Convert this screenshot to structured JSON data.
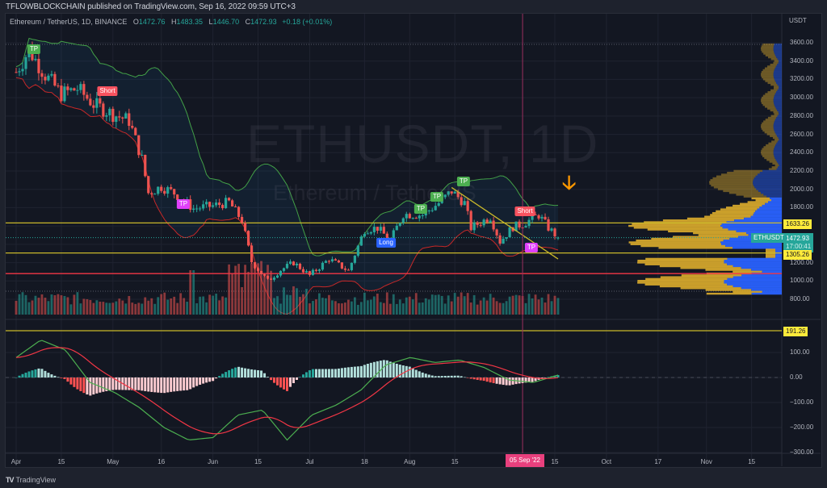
{
  "header": {
    "publisher_line": "TFLOWBLOCKCHAIN published on TradingView.com, Sep 16, 2022 09:59 UTC+3"
  },
  "legend": {
    "symbol_desc": "Ethereum / TetherUS, 1D, BINANCE",
    "o_label": "O",
    "o": "1472.76",
    "h_label": "H",
    "h": "1483.35",
    "l_label": "L",
    "l": "1446.70",
    "c_label": "C",
    "c": "1472.93",
    "change": "+0.18 (+0.01%)"
  },
  "watermark": {
    "symbol": "ETHUSDT, 1D",
    "name": "Ethereum / TetherUS"
  },
  "price_axis": {
    "unit": "USDT",
    "ticks": [
      "3600.00",
      "3400.00",
      "3200.00",
      "3000.00",
      "2800.00",
      "2600.00",
      "2400.00",
      "2200.00",
      "2000.00",
      "1800.00",
      "1200.00",
      "1000.00",
      "800.00"
    ]
  },
  "macd_axis": {
    "ticks": [
      "100.00",
      "0.00",
      "−100.00",
      "−200.00",
      "−300.00"
    ]
  },
  "time_axis": {
    "ticks": [
      "Apr",
      "15",
      "May",
      "16",
      "Jun",
      "15",
      "Jul",
      "18",
      "Aug",
      "15",
      "15",
      "Oct",
      "17",
      "Nov",
      "15"
    ],
    "crosshair_date": "05 Sep '22"
  },
  "price_tags": {
    "resistance": "1633.26",
    "support": "1305.26",
    "last_price": "1472.93",
    "countdown": "17:00:41",
    "symbol": "ETHUSDT",
    "macd_level": "191.26"
  },
  "signals": [
    {
      "label": "TP",
      "color": "#4caf50"
    },
    {
      "label": "Short",
      "color": "#f7525f"
    },
    {
      "label": "TP",
      "color": "#e040fb"
    },
    {
      "label": "Long",
      "color": "#2962ff"
    },
    {
      "label": "TP",
      "color": "#4caf50"
    },
    {
      "label": "TP",
      "color": "#4caf50"
    },
    {
      "label": "TP",
      "color": "#4caf50"
    },
    {
      "label": "Short",
      "color": "#f7525f"
    },
    {
      "label": "TP",
      "color": "#e040fb"
    }
  ],
  "footer": {
    "logo": "TV",
    "brand": "TradingView"
  },
  "colors": {
    "bull": "#26a69a",
    "bear": "#ef5350",
    "upper_band": "#43a047",
    "lower_band": "#c62828",
    "level_line": "#c9b82a",
    "red_level": "#f23645",
    "crosshair": "#9c2f5f",
    "vp_up": "#2962ff",
    "vp_down": "#d4a72c",
    "macd_line": "#4caf50",
    "signal_line": "#f23645"
  },
  "chart_data": {
    "type": "candlestick",
    "title": "Ethereum / TetherUS, 1D, BINANCE",
    "symbol": "ETHUSDT",
    "timeframe": "1D",
    "x_range": [
      "2022-04-01",
      "2022-09-16"
    ],
    "ylim": [
      750,
      3650
    ],
    "approx_closes": [
      {
        "date": "2022-04-01",
        "close": 3280
      },
      {
        "date": "2022-04-05",
        "close": 3520
      },
      {
        "date": "2022-04-10",
        "close": 3250
      },
      {
        "date": "2022-04-15",
        "close": 3040
      },
      {
        "date": "2022-04-20",
        "close": 3100
      },
      {
        "date": "2022-04-25",
        "close": 2930
      },
      {
        "date": "2022-05-01",
        "close": 2820
      },
      {
        "date": "2022-05-06",
        "close": 2750
      },
      {
        "date": "2022-05-10",
        "close": 2330
      },
      {
        "date": "2022-05-12",
        "close": 1960
      },
      {
        "date": "2022-05-16",
        "close": 2030
      },
      {
        "date": "2022-05-20",
        "close": 1960
      },
      {
        "date": "2022-05-26",
        "close": 1790
      },
      {
        "date": "2022-06-01",
        "close": 1820
      },
      {
        "date": "2022-06-06",
        "close": 1860
      },
      {
        "date": "2022-06-10",
        "close": 1660
      },
      {
        "date": "2022-06-13",
        "close": 1210
      },
      {
        "date": "2022-06-18",
        "close": 1000
      },
      {
        "date": "2022-06-22",
        "close": 1120
      },
      {
        "date": "2022-06-26",
        "close": 1200
      },
      {
        "date": "2022-07-01",
        "close": 1060
      },
      {
        "date": "2022-07-07",
        "close": 1240
      },
      {
        "date": "2022-07-13",
        "close": 1110
      },
      {
        "date": "2022-07-18",
        "close": 1560
      },
      {
        "date": "2022-07-22",
        "close": 1580
      },
      {
        "date": "2022-07-26",
        "close": 1440
      },
      {
        "date": "2022-07-30",
        "close": 1730
      },
      {
        "date": "2022-08-05",
        "close": 1720
      },
      {
        "date": "2022-08-10",
        "close": 1850
      },
      {
        "date": "2022-08-14",
        "close": 1980
      },
      {
        "date": "2022-08-18",
        "close": 1850
      },
      {
        "date": "2022-08-20",
        "close": 1580
      },
      {
        "date": "2022-08-26",
        "close": 1700
      },
      {
        "date": "2022-08-29",
        "close": 1430
      },
      {
        "date": "2022-09-02",
        "close": 1590
      },
      {
        "date": "2022-09-05",
        "close": 1620
      },
      {
        "date": "2022-09-10",
        "close": 1720
      },
      {
        "date": "2022-09-13",
        "close": 1580
      },
      {
        "date": "2022-09-16",
        "close": 1472.93
      }
    ],
    "horizontal_levels": [
      1633.26,
      1305.26,
      1080
    ],
    "trendline": {
      "from": {
        "date": "2022-08-14",
        "price": 2020
      },
      "to": {
        "date": "2022-09-16",
        "price": 1240
      }
    },
    "signals": [
      {
        "date": "2022-04-06",
        "label": "TP"
      },
      {
        "date": "2022-04-30",
        "label": "Short"
      },
      {
        "date": "2022-05-22",
        "label": "TP"
      },
      {
        "date": "2022-07-24",
        "label": "Long"
      },
      {
        "date": "2022-08-03",
        "label": "TP"
      },
      {
        "date": "2022-08-08",
        "label": "TP"
      },
      {
        "date": "2022-08-13",
        "label": "TP"
      },
      {
        "date": "2022-09-05",
        "label": "Short"
      },
      {
        "date": "2022-09-08",
        "label": "TP"
      }
    ],
    "indicators": {
      "bollinger_bands": true,
      "volume": true,
      "volume_profile": true,
      "macd": {
        "ylim": [
          -300,
          200
        ],
        "level_line": 191.26,
        "approx_macd": [
          80,
          150,
          110,
          -20,
          -60,
          -120,
          -200,
          -250,
          -240,
          -150,
          -130,
          -250,
          -150,
          -110,
          -50,
          50,
          80,
          60,
          70,
          40,
          -10,
          -20,
          10
        ]
      }
    },
    "ylabel": "USDT"
  }
}
